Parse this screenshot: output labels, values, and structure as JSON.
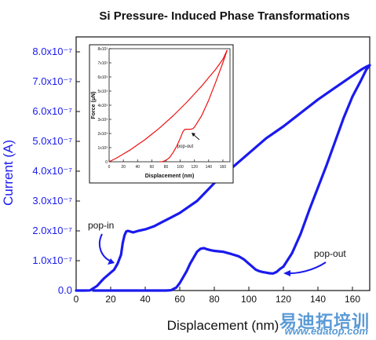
{
  "chart_data": {
    "type": "line",
    "title": "Si Pressure- Induced Phase Transformations",
    "xlabel": "Displacement (nm)",
    "ylabel": "Current (A)",
    "xlim": [
      0,
      170
    ],
    "ylim": [
      0,
      8.5e-07
    ],
    "x_ticks": [
      "0",
      "20",
      "40",
      "60",
      "80",
      "100",
      "120",
      "140",
      "160"
    ],
    "y_ticks": [
      "0.0",
      "1.0x10⁻⁷",
      "2.0x10⁻⁷",
      "3.0x10⁻⁷",
      "4.0x10⁻⁷",
      "5.0x10⁻⁷",
      "6.0x10⁻⁷",
      "7.0x10⁻⁷",
      "8.0x10⁻⁷"
    ],
    "grid": false,
    "series": [
      {
        "color": "#1a1aee",
        "x": [
          0,
          5,
          8,
          12,
          16,
          20,
          22,
          24,
          26,
          27,
          28,
          29,
          30,
          33,
          36,
          40,
          45,
          50,
          55,
          60,
          65,
          70,
          75,
          80,
          90,
          100,
          110,
          120,
          130,
          140,
          150,
          160,
          165,
          168,
          170
        ],
        "y": [
          0,
          0,
          5e-10,
          1.5e-08,
          4e-08,
          6e-08,
          7e-08,
          9e-08,
          1.2e-07,
          1.6e-07,
          1.85e-07,
          1.98e-07,
          2e-07,
          1.95e-07,
          2e-07,
          2.05e-07,
          2.15e-07,
          2.3e-07,
          2.45e-07,
          2.6e-07,
          2.8e-07,
          3e-07,
          3.3e-07,
          3.6e-07,
          4.1e-07,
          4.6e-07,
          5.1e-07,
          5.5e-07,
          5.95e-07,
          6.4e-07,
          6.8e-07,
          7.2e-07,
          7.4e-07,
          7.5e-07,
          7.55e-07
        ]
      },
      {
        "color": "#1a1aee",
        "x": [
          170,
          168,
          165,
          160,
          155,
          150,
          145,
          140,
          135,
          130,
          125,
          120,
          118,
          116,
          114,
          112,
          110,
          108,
          106,
          104,
          102,
          100,
          97,
          94,
          90,
          85,
          80,
          78,
          76,
          74,
          72,
          70,
          68,
          66,
          64,
          62,
          60,
          58,
          55,
          52,
          50,
          45,
          40,
          30,
          20,
          10
        ],
        "y": [
          7.55e-07,
          7.4e-07,
          7.05e-07,
          6.5e-07,
          5.8e-07,
          5e-07,
          4.2e-07,
          3.45e-07,
          2.7e-07,
          1.9e-07,
          1.25e-07,
          8e-08,
          7.2e-08,
          6.2e-08,
          5.7e-08,
          5.8e-08,
          6e-08,
          6.2e-08,
          6.5e-08,
          7e-08,
          8e-08,
          9e-08,
          1.05e-07,
          1.15e-07,
          1.22e-07,
          1.3e-07,
          1.33e-07,
          1.35e-07,
          1.38e-07,
          1.42e-07,
          1.4e-07,
          1.3e-07,
          1.1e-07,
          9e-08,
          6.5e-08,
          4.5e-08,
          2.5e-08,
          1e-08,
          1e-09,
          0,
          0,
          0,
          0,
          0,
          0,
          0
        ]
      }
    ],
    "annotations": [
      {
        "text": "pop-in"
      },
      {
        "text": "pop-out"
      }
    ],
    "inset": {
      "type": "line",
      "xlabel": "Displacement (nm)",
      "ylabel": "Force (μN)",
      "xlim": [
        0,
        170
      ],
      "ylim": [
        0,
        8000
      ],
      "x_ticks": [
        "0",
        "20",
        "40",
        "60",
        "80",
        "100",
        "120",
        "140",
        "160"
      ],
      "y_ticks": [
        "0",
        "1x10³",
        "2x10³",
        "3x10³",
        "4x10³",
        "5x10³",
        "6x10³",
        "7x10³",
        "8x10³"
      ],
      "annotation": "pop-out",
      "series": [
        {
          "color": "#ee1111",
          "x": [
            0,
            10,
            20,
            30,
            40,
            50,
            60,
            70,
            80,
            90,
            100,
            110,
            120,
            130,
            140,
            150,
            160,
            166
          ],
          "y": [
            0,
            250,
            550,
            850,
            1200,
            1550,
            1950,
            2350,
            2800,
            3250,
            3750,
            4250,
            4800,
            5350,
            5950,
            6550,
            7250,
            7900
          ]
        },
        {
          "color": "#ee1111",
          "x": [
            166,
            160,
            150,
            140,
            130,
            120,
            118,
            115,
            110,
            107,
            104,
            100,
            95,
            90,
            85,
            80,
            75,
            72
          ],
          "y": [
            7900,
            7000,
            5650,
            4350,
            3250,
            2450,
            2350,
            2300,
            2300,
            2300,
            2150,
            1650,
            1100,
            650,
            300,
            100,
            10,
            0
          ]
        }
      ]
    }
  },
  "watermark": {
    "chinese": "易迪拓培训",
    "url": "www.edatop.com"
  }
}
